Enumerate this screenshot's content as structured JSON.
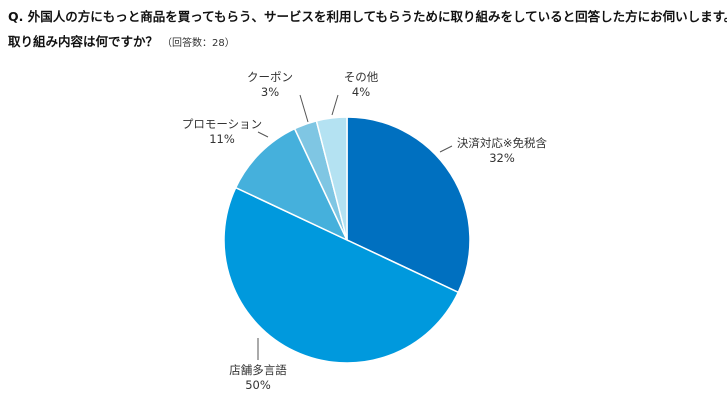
{
  "question": {
    "line1": "Q. 外国人の方にもっと商品を買ってもらう、サービスを利用してもらうために取り組みをしていると回答した方にお伺いします。",
    "line2": "取り組み内容は何ですか？",
    "note": "（回答数：28）"
  },
  "chart_data": {
    "type": "pie",
    "start_angle_deg": 0,
    "direction": "clockwise",
    "slices": [
      {
        "label": "決済対応※免税含",
        "value": 32,
        "value_label": "32%",
        "color": "#0070c0"
      },
      {
        "label": "店舗多言語",
        "value": 50,
        "value_label": "50%",
        "color": "#0099dd"
      },
      {
        "label": "プロモーション",
        "value": 11,
        "value_label": "11%",
        "color": "#45b0dc"
      },
      {
        "label": "クーポン",
        "value": 3,
        "value_label": "3%",
        "color": "#7fc6e3"
      },
      {
        "label": "その他",
        "value": 4,
        "value_label": "4%",
        "color": "#b4e2f2"
      }
    ]
  }
}
